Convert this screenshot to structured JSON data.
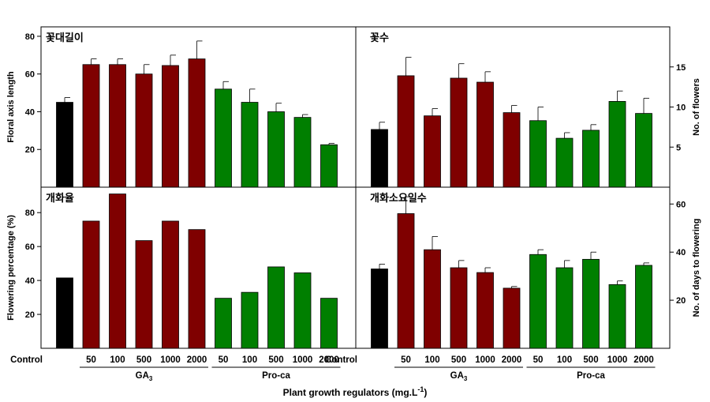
{
  "colors": {
    "control": "#000000",
    "ga3": "#7f0000",
    "proca": "#007f00",
    "axis": "#000000"
  },
  "x_label": {
    "text": "Plant growth regulators (mg.L",
    "sup": "-1",
    "close": ")"
  },
  "x_tick_labels": [
    "Control",
    "50",
    "100",
    "500",
    "1000",
    "2000",
    "50",
    "100",
    "500",
    "1000",
    "2000"
  ],
  "groups": [
    {
      "label_main": "GA",
      "label_sub": "3",
      "start": 1,
      "end": 5
    },
    {
      "label_main": "Pro-ca",
      "label_sub": "",
      "start": 6,
      "end": 10
    }
  ],
  "chart_data": [
    {
      "type": "bar",
      "panel_title": "꽃대길이",
      "ylabel": "Floral axis length",
      "ylabel_side": "left",
      "ylim": [
        0,
        85
      ],
      "yticks": [
        20,
        40,
        60,
        80
      ],
      "categories": [
        "Control",
        "50",
        "100",
        "500",
        "1000",
        "2000",
        "50",
        "100",
        "500",
        "1000",
        "2000"
      ],
      "values": [
        45,
        65,
        65,
        60,
        64.5,
        68,
        52,
        45,
        40,
        37,
        22.5
      ],
      "errors": [
        2.5,
        3,
        3,
        5,
        5.5,
        9.5,
        4,
        7,
        4.5,
        1.5,
        0.7
      ]
    },
    {
      "type": "bar",
      "panel_title": "꽃수",
      "ylabel": "No. of flowers",
      "ylabel_side": "right",
      "ylim": [
        0,
        20
      ],
      "yticks": [
        5,
        10,
        15
      ],
      "categories": [
        "Control",
        "50",
        "100",
        "500",
        "1000",
        "2000",
        "50",
        "100",
        "500",
        "1000",
        "2000"
      ],
      "values": [
        7.2,
        13.9,
        8.9,
        13.6,
        13.1,
        9.3,
        8.3,
        6.1,
        7.1,
        10.7,
        9.2
      ],
      "errors": [
        0.9,
        2.3,
        0.9,
        1.8,
        1.3,
        0.9,
        1.7,
        0.7,
        0.7,
        1.3,
        1.9
      ]
    },
    {
      "type": "bar",
      "panel_title": "개화율",
      "ylabel": "Flowering percentage (%)",
      "ylabel_side": "left",
      "ylim": [
        0,
        95
      ],
      "yticks": [
        20,
        40,
        60,
        80
      ],
      "categories": [
        "Control",
        "50",
        "100",
        "500",
        "1000",
        "2000",
        "50",
        "100",
        "500",
        "1000",
        "2000"
      ],
      "values": [
        41.5,
        75,
        91,
        63.5,
        75,
        70,
        29.5,
        33,
        48,
        44.5,
        29.5
      ],
      "errors": [
        0,
        0,
        0,
        0,
        0,
        0,
        0,
        0,
        0,
        0,
        0
      ]
    },
    {
      "type": "bar",
      "panel_title": "개화소요일수",
      "ylabel": "No. of days to flowering",
      "ylabel_side": "right",
      "ylim": [
        0,
        67
      ],
      "yticks": [
        20,
        40,
        60
      ],
      "categories": [
        "Control",
        "50",
        "100",
        "500",
        "1000",
        "2000",
        "50",
        "100",
        "500",
        "1000",
        "2000"
      ],
      "values": [
        33,
        56,
        41,
        33.5,
        31.5,
        25,
        39,
        33.5,
        37,
        26.5,
        34.5
      ],
      "errors": [
        2,
        7,
        5.5,
        3,
        2,
        0.7,
        2,
        3,
        3,
        1.5,
        1
      ]
    }
  ]
}
